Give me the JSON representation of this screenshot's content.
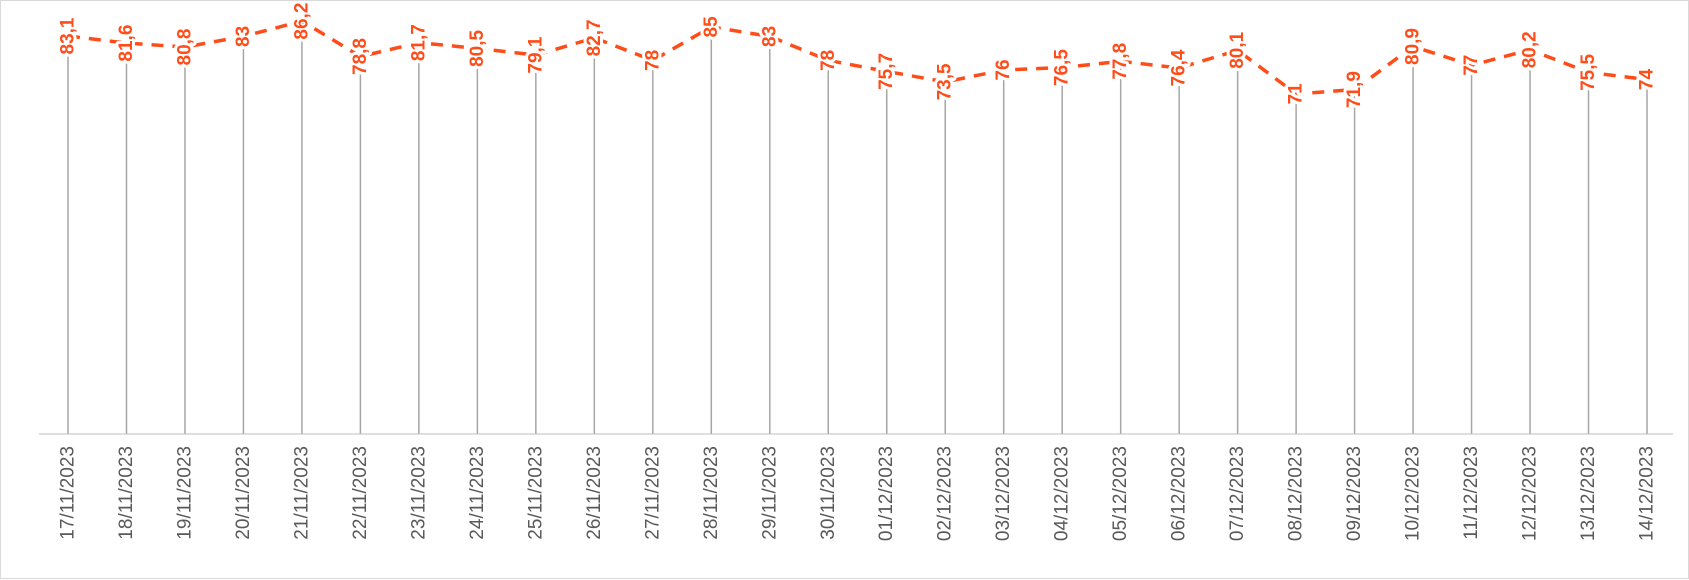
{
  "chart_data": {
    "type": "line",
    "title": "",
    "xlabel": "",
    "ylabel": "",
    "ylim": [
      0,
      100
    ],
    "grid": false,
    "legend": "none",
    "line_style": "dashed",
    "drop_lines": true,
    "data_labels": "rotated",
    "colors": {
      "series": "#FF4D1A",
      "drop_line": "#a6a6a6",
      "axis": "#bfbfbf",
      "tick_text": "#595959",
      "frame": "#d9d9d9"
    },
    "categories": [
      "17/11/2023",
      "18/11/2023",
      "19/11/2023",
      "20/11/2023",
      "21/11/2023",
      "22/11/2023",
      "23/11/2023",
      "24/11/2023",
      "25/11/2023",
      "26/11/2023",
      "27/11/2023",
      "28/11/2023",
      "29/11/2023",
      "30/11/2023",
      "01/12/2023",
      "02/12/2023",
      "03/12/2023",
      "04/12/2023",
      "05/12/2023",
      "06/12/2023",
      "07/12/2023",
      "08/12/2023",
      "09/12/2023",
      "10/12/2023",
      "11/12/2023",
      "12/12/2023",
      "13/12/2023",
      "14/12/2023"
    ],
    "values": [
      83.1,
      81.6,
      80.8,
      83,
      86.2,
      78.8,
      81.7,
      80.5,
      79.1,
      82.7,
      78,
      85,
      83,
      78,
      75.7,
      73.5,
      76,
      76.5,
      77.8,
      76.4,
      80.1,
      71,
      71.9,
      80.9,
      77,
      80.2,
      75.5,
      74
    ],
    "labels": [
      "83,1",
      "81,6",
      "80,8",
      "83",
      "86,2",
      "78,8",
      "81,7",
      "80,5",
      "79,1",
      "82,7",
      "78",
      "85",
      "83",
      "78",
      "75,7",
      "73,5",
      "76",
      "76,5",
      "77,8",
      "76,4",
      "80,1",
      "71",
      "71,9",
      "80,9",
      "77",
      "80,2",
      "75,5",
      "74"
    ]
  }
}
